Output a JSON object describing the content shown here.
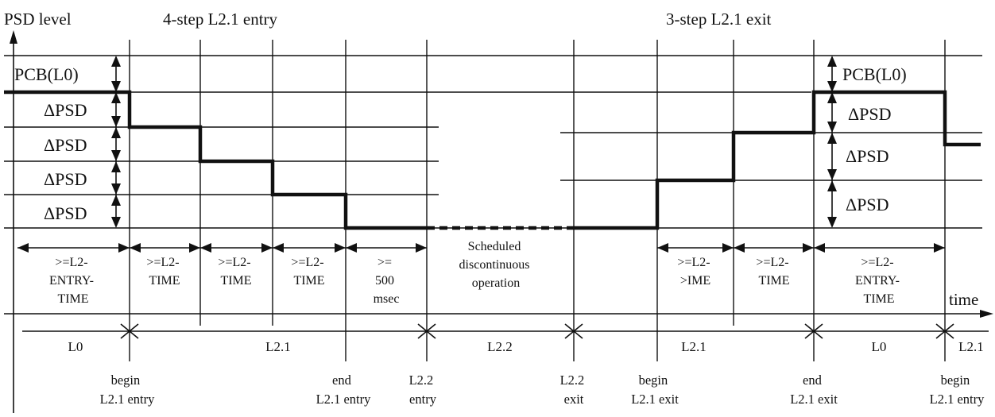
{
  "header": {
    "y_axis_label": "PSD level",
    "entry_title": "4-step L2.1 entry",
    "exit_title": "3-step L2.1 exit",
    "x_axis_label": "time"
  },
  "levels": {
    "left": [
      "PCB(L0)",
      "ΔPSD",
      "ΔPSD",
      "ΔPSD",
      "ΔPSD"
    ],
    "right": [
      "PCB(L0)",
      "ΔPSD",
      "ΔPSD",
      "ΔPSD"
    ]
  },
  "durations": [
    [
      ">=L2-",
      "ENTRY-",
      "TIME"
    ],
    [
      ">=L2-",
      "TIME"
    ],
    [
      ">=L2-",
      "TIME"
    ],
    [
      ">=L2-",
      "TIME"
    ],
    [
      ">=",
      "500",
      "msec"
    ],
    [
      "Scheduled",
      "discontinuous",
      "operation"
    ],
    [
      ">=L2-",
      ">IME"
    ],
    [
      ">=L2-",
      "TIME"
    ],
    [
      ">=L2-",
      "ENTRY-",
      "TIME"
    ]
  ],
  "states": [
    "L0",
    "L2.1",
    "L2.2",
    "L2.1",
    "L0",
    "L2.1"
  ],
  "events": [
    [
      "begin",
      "L2.1 entry"
    ],
    [
      "end",
      "L2.1 entry"
    ],
    [
      "L2.2",
      "entry"
    ],
    [
      "L2.2",
      "exit"
    ],
    [
      "begin",
      "L2.1 exit"
    ],
    [
      "end",
      "L2.1 exit"
    ],
    [
      "begin",
      "L2.1 entry"
    ]
  ]
}
